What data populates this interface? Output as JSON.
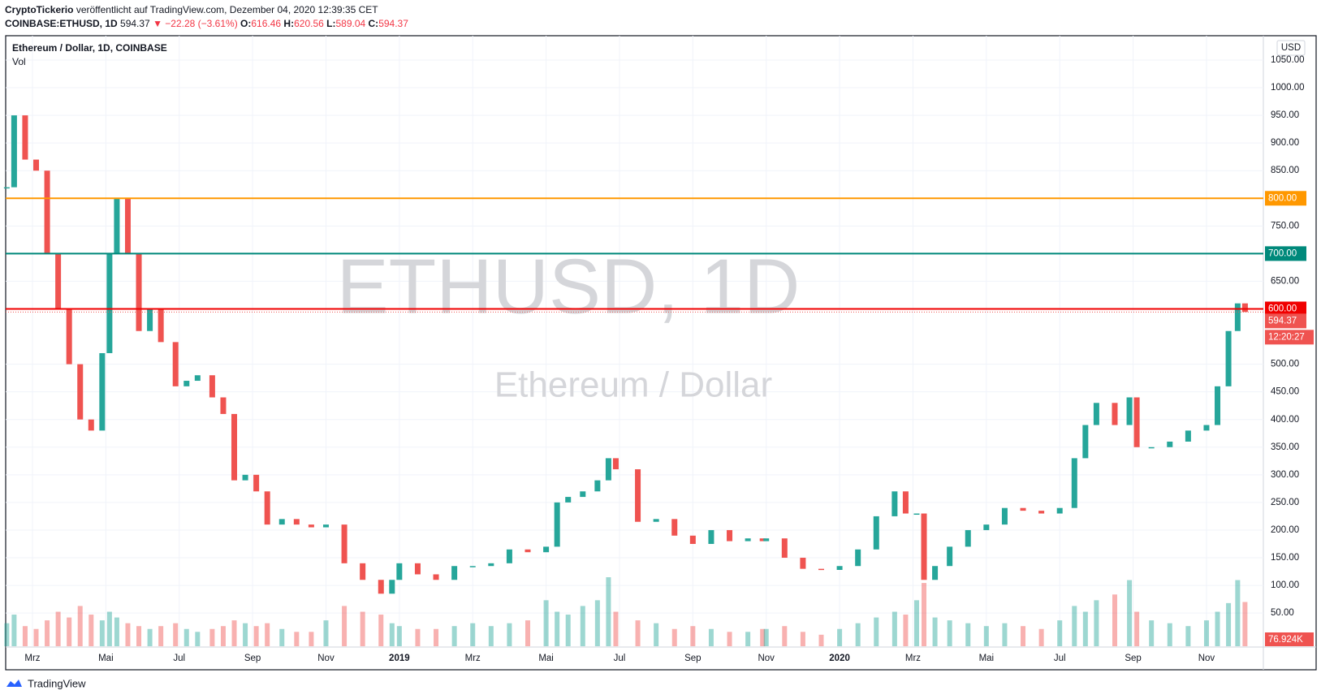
{
  "header": {
    "author": "CryptoTickerio",
    "published": "veröffentlicht auf TradingView.com, Dezember 04, 2020 12:39:35 CET",
    "symbol": "COINBASE:ETHUSD, 1D",
    "last": "594.37",
    "change": "▼ −22.28 (−3.61%)",
    "o_label": "O:",
    "open": "616.46",
    "h_label": "H:",
    "high": "620.56",
    "l_label": "L:",
    "low": "589.04",
    "c_label": "C:",
    "close": "594.37"
  },
  "chart_data": {
    "type": "candlestick",
    "title": "Ethereum / Dollar, 1D, COINBASE",
    "volume_title": "Vol",
    "currency": "USD",
    "watermark": "ETHUSD, 1D",
    "watermark_sub": "Ethereum / Dollar",
    "up_color": "#26a69a",
    "down_color": "#ef5350",
    "grid": true,
    "xlim": [
      1.27,
      35.55
    ],
    "ylim": [
      -10,
      1094
    ],
    "xticks": [
      {
        "value": 2,
        "label": "Mrz"
      },
      {
        "value": 4,
        "label": "Mai"
      },
      {
        "value": 6,
        "label": "Jul"
      },
      {
        "value": 8,
        "label": "Sep"
      },
      {
        "value": 10,
        "label": "Nov"
      },
      {
        "value": 12,
        "label": "2019"
      },
      {
        "value": 14,
        "label": "Mrz"
      },
      {
        "value": 16,
        "label": "Mai"
      },
      {
        "value": 18,
        "label": "Jul"
      },
      {
        "value": 20,
        "label": "Sep"
      },
      {
        "value": 22,
        "label": "Nov"
      },
      {
        "value": 24,
        "label": "2020"
      },
      {
        "value": 26,
        "label": "Mrz"
      },
      {
        "value": 28,
        "label": "Mai"
      },
      {
        "value": 30,
        "label": "Jul"
      },
      {
        "value": 32,
        "label": "Sep"
      },
      {
        "value": 34,
        "label": "Nov"
      }
    ],
    "yticks": [
      {
        "value": 50,
        "label": "50.00"
      },
      {
        "value": 100,
        "label": "100.00"
      },
      {
        "value": 150,
        "label": "150.00"
      },
      {
        "value": 200,
        "label": "200.00"
      },
      {
        "value": 250,
        "label": "250.00"
      },
      {
        "value": 300,
        "label": "300.00"
      },
      {
        "value": 350,
        "label": "350.00"
      },
      {
        "value": 400,
        "label": "400.00"
      },
      {
        "value": 450,
        "label": "450.00"
      },
      {
        "value": 500,
        "label": "500.00"
      },
      {
        "value": 650,
        "label": "650.00"
      },
      {
        "value": 750,
        "label": "750.00"
      },
      {
        "value": 850,
        "label": "850.00"
      },
      {
        "value": 900,
        "label": "900.00"
      },
      {
        "value": 950,
        "label": "950.00"
      },
      {
        "value": 1000,
        "label": "1000.00"
      },
      {
        "value": 1050,
        "label": "1050.00"
      }
    ],
    "x": [
      1.3,
      1.5,
      1.8,
      2.1,
      2.4,
      2.7,
      3.0,
      3.3,
      3.6,
      3.9,
      4.1,
      4.3,
      4.6,
      4.9,
      5.2,
      5.5,
      5.9,
      6.2,
      6.5,
      6.9,
      7.2,
      7.5,
      7.8,
      8.1,
      8.4,
      8.8,
      9.2,
      9.6,
      10.0,
      10.5,
      11.0,
      11.5,
      11.8,
      12.0,
      12.5,
      13.0,
      13.5,
      14.0,
      14.5,
      15.0,
      15.5,
      16.0,
      16.3,
      16.6,
      17.0,
      17.4,
      17.7,
      17.9,
      18.5,
      19.0,
      19.5,
      20.0,
      20.5,
      21.0,
      21.5,
      21.9,
      22.0,
      22.5,
      23.0,
      23.5,
      24.0,
      24.5,
      25.0,
      25.5,
      25.8,
      26.1,
      26.3,
      26.6,
      27.0,
      27.5,
      28.0,
      28.5,
      29.0,
      29.5,
      30.0,
      30.4,
      30.7,
      31.0,
      31.5,
      31.9,
      32.1,
      32.5,
      33.0,
      33.5,
      34.0,
      34.3,
      34.6,
      34.85,
      35.05
    ],
    "values": [
      820,
      950,
      870,
      850,
      700,
      600,
      500,
      400,
      380,
      520,
      700,
      800,
      700,
      560,
      600,
      540,
      460,
      470,
      480,
      440,
      410,
      290,
      300,
      270,
      210,
      220,
      210,
      205,
      210,
      140,
      110,
      85,
      110,
      140,
      120,
      110,
      135,
      135,
      140,
      165,
      160,
      170,
      250,
      260,
      270,
      290,
      330,
      310,
      215,
      220,
      190,
      175,
      200,
      180,
      185,
      180,
      185,
      150,
      130,
      128,
      135,
      165,
      225,
      270,
      230,
      230,
      110,
      135,
      170,
      200,
      210,
      240,
      235,
      230,
      240,
      330,
      390,
      430,
      390,
      440,
      350,
      350,
      360,
      380,
      390,
      460,
      560,
      610,
      594.37
    ],
    "volume": [
      40,
      55,
      35,
      30,
      45,
      60,
      50,
      70,
      55,
      45,
      60,
      50,
      40,
      35,
      30,
      35,
      40,
      30,
      25,
      30,
      35,
      45,
      40,
      35,
      40,
      30,
      25,
      25,
      45,
      70,
      60,
      55,
      40,
      35,
      30,
      30,
      35,
      40,
      35,
      40,
      45,
      80,
      60,
      55,
      70,
      80,
      120,
      60,
      45,
      40,
      30,
      35,
      30,
      25,
      25,
      30,
      30,
      35,
      25,
      20,
      30,
      40,
      50,
      60,
      55,
      80,
      110,
      50,
      45,
      40,
      35,
      40,
      35,
      30,
      45,
      70,
      60,
      80,
      90,
      115,
      60,
      45,
      40,
      35,
      45,
      60,
      75,
      115,
      76.924
    ],
    "volume_last": {
      "value": 76.924,
      "label": "76.924K"
    },
    "levels": [
      {
        "value": 800,
        "label": "800.00",
        "color": "#ff9800"
      },
      {
        "value": 700,
        "label": "700.00",
        "color": "#00897b"
      },
      {
        "value": 600,
        "label": "600.00",
        "color": "#f00000"
      }
    ],
    "last_price": {
      "value": 594.37,
      "label": "594.37"
    },
    "countdown": "12:20:27"
  },
  "footer": {
    "brand": "TradingView"
  }
}
